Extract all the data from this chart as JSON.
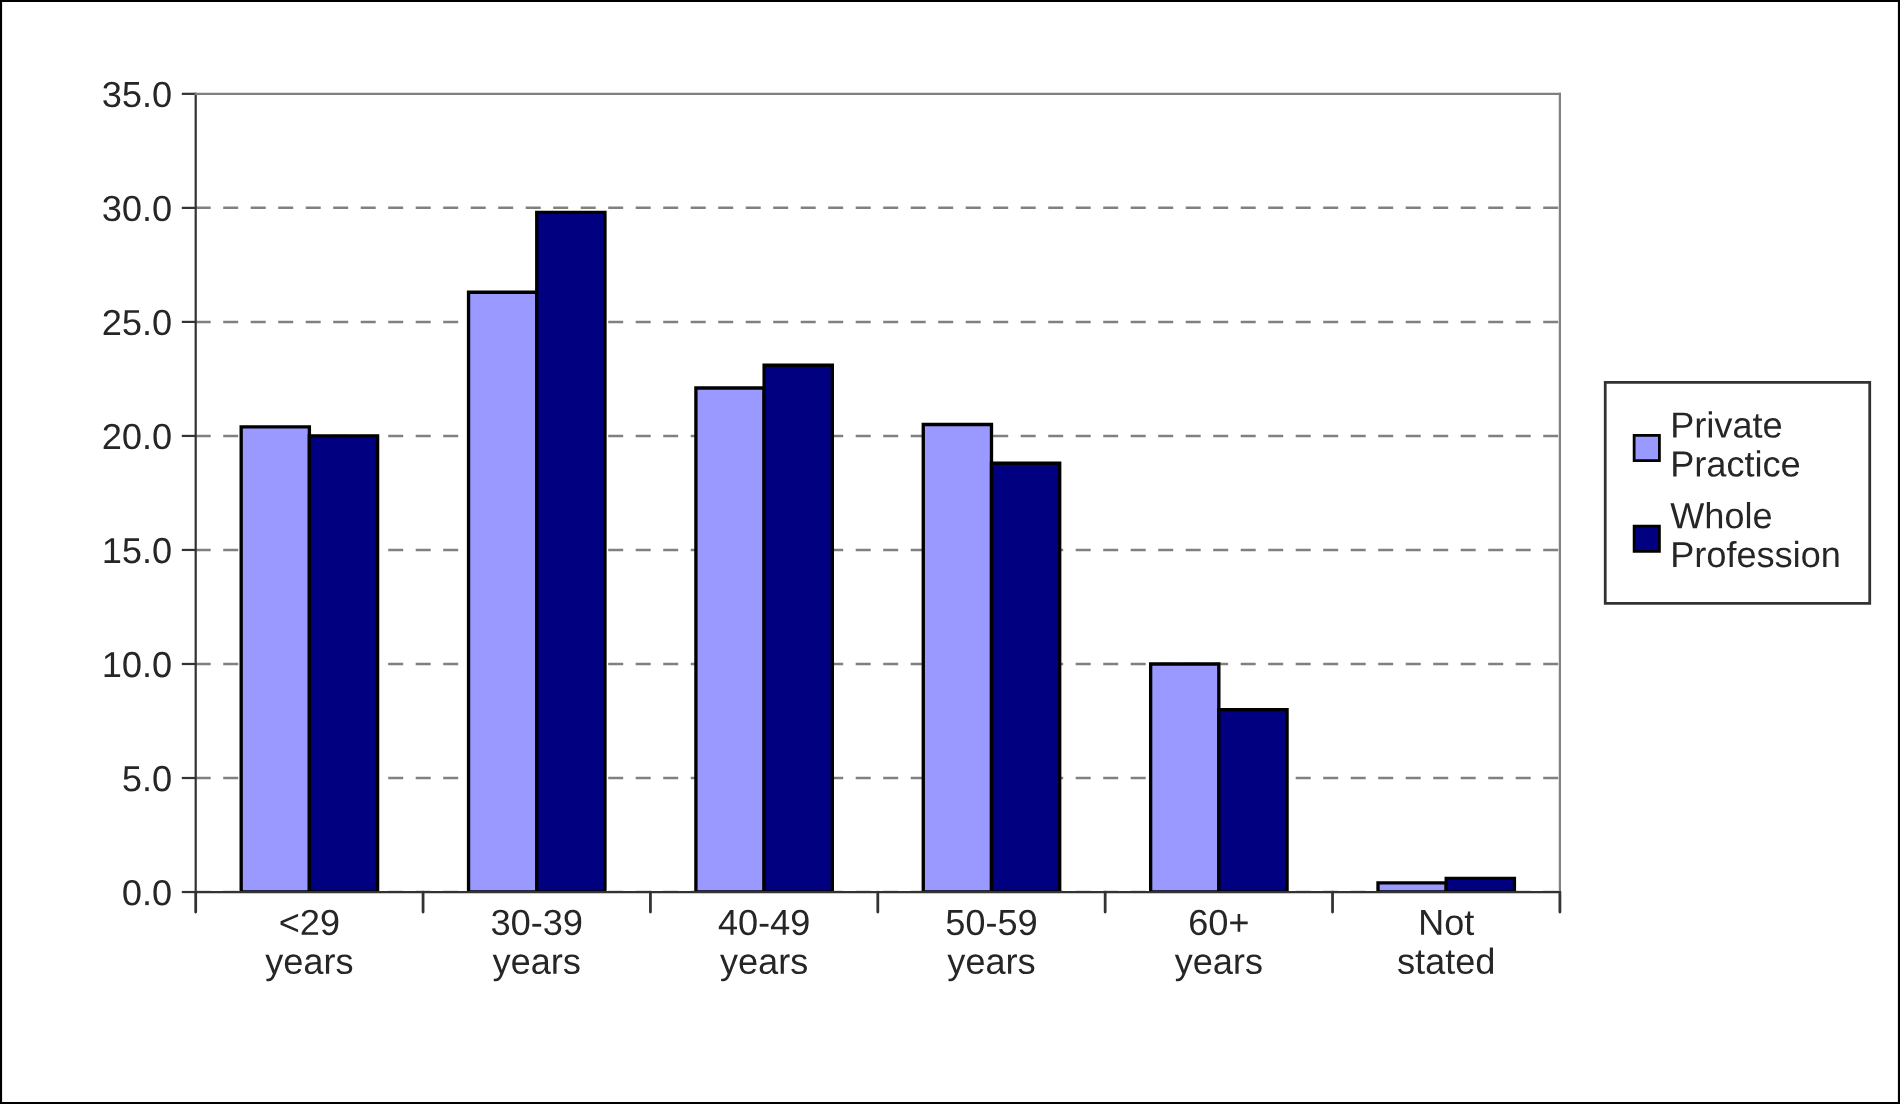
{
  "chart_data": {
    "type": "bar",
    "categories": [
      "<29\nyears",
      "30-39\nyears",
      "40-49\nyears",
      "50-59\nyears",
      "60+\nyears",
      "Not\nstated"
    ],
    "series": [
      {
        "name": "Private\nPractice",
        "color": "#9999ff",
        "values": [
          20.4,
          26.3,
          22.1,
          20.5,
          10.0,
          0.4
        ]
      },
      {
        "name": "Whole\nProfession",
        "color": "#000080",
        "values": [
          20.0,
          29.8,
          23.1,
          18.8,
          8.0,
          0.6
        ]
      }
    ],
    "ylim": [
      0,
      35
    ],
    "yticks": [
      {
        "value": 0,
        "label": "0.0"
      },
      {
        "value": 5,
        "label": "5.0"
      },
      {
        "value": 10,
        "label": "10.0"
      },
      {
        "value": 15,
        "label": "15.0"
      },
      {
        "value": 20,
        "label": "20.0"
      },
      {
        "value": 25,
        "label": "25.0"
      },
      {
        "value": 30,
        "label": "30.0"
      },
      {
        "value": 35,
        "label": "35.0"
      }
    ],
    "grid": "y",
    "legend": "right"
  }
}
